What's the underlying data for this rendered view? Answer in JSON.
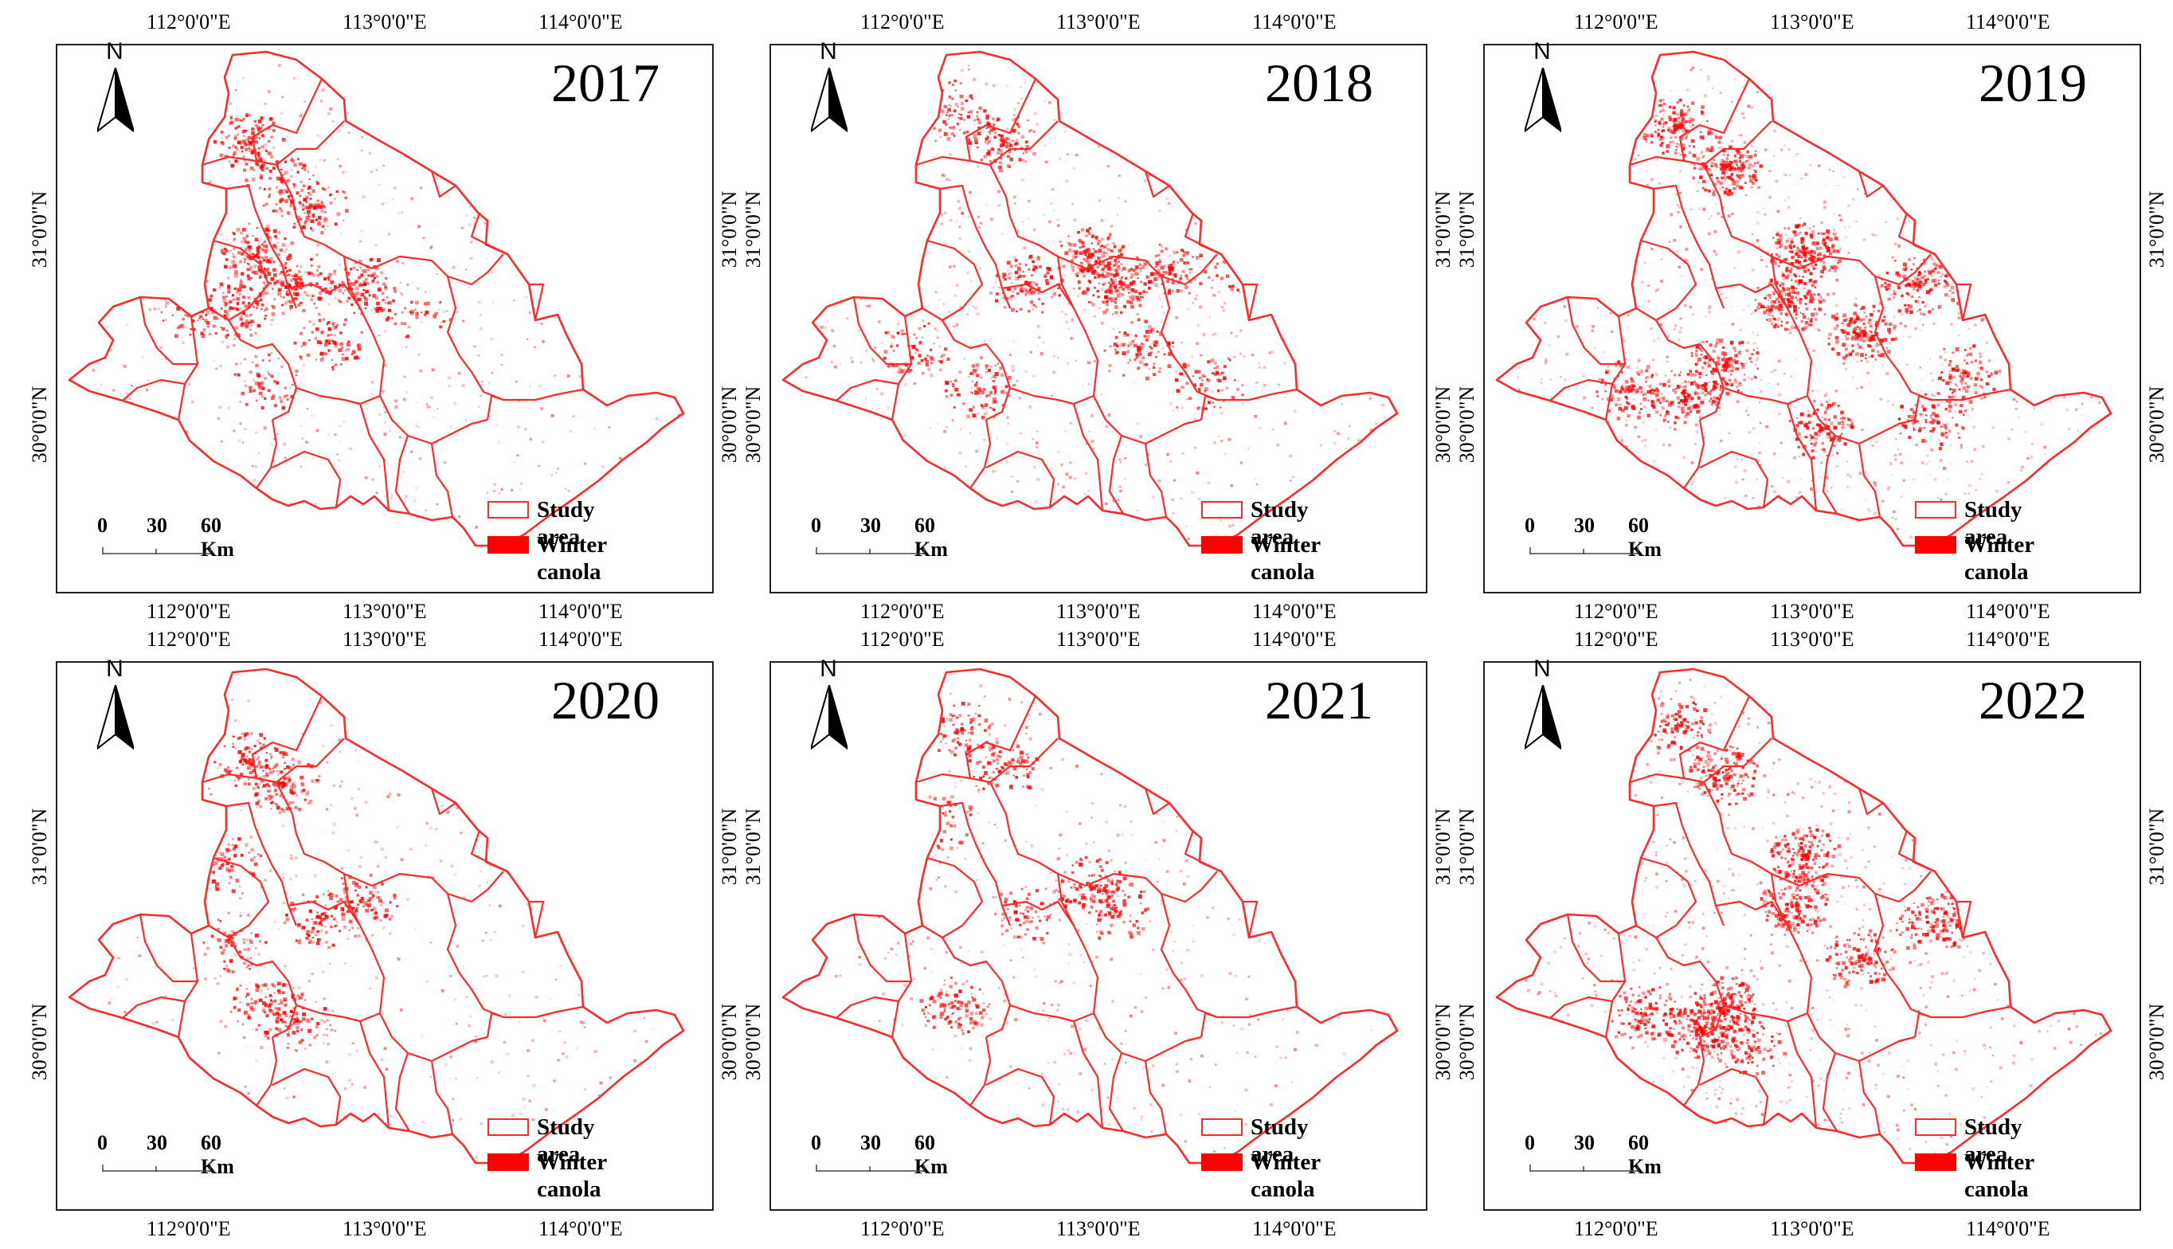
{
  "lon_labels": [
    "112°0'0\"E",
    "113°0'0\"E",
    "114°0'0\"E"
  ],
  "lat_labels": [
    "31°0'0\"N",
    "30°0'0\"N"
  ],
  "north_letter": "N",
  "scale": {
    "t0": "0",
    "t1": "30",
    "t2": "60 Km"
  },
  "legend": {
    "study_area": "Study area",
    "winter_canola": "Winter canola"
  },
  "colors": {
    "boundary": "#ff2a2a",
    "canola": "#ff0000",
    "frame": "#222222"
  },
  "panels": [
    {
      "year": "2017",
      "density": 0.55
    },
    {
      "year": "2018",
      "density": 0.75
    },
    {
      "year": "2019",
      "density": 1.0
    },
    {
      "year": "2020",
      "density": 0.45
    },
    {
      "year": "2021",
      "density": 0.5
    },
    {
      "year": "2022",
      "density": 0.9
    }
  ]
}
